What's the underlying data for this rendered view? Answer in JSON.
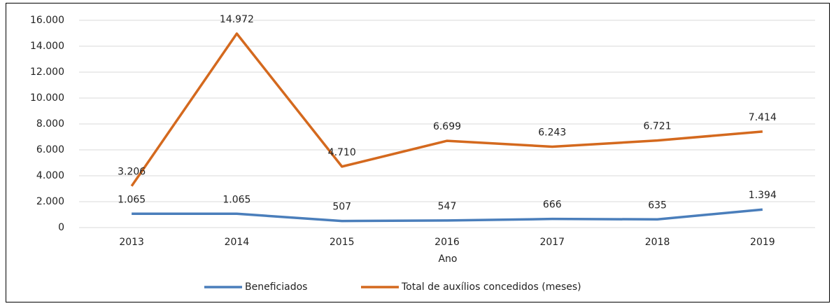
{
  "chart_data": {
    "type": "line",
    "x_label": "Ano",
    "categories": [
      "2013",
      "2014",
      "2015",
      "2016",
      "2017",
      "2018",
      "2019"
    ],
    "series": [
      {
        "name": "Beneficiados",
        "color": "#4a7ebb",
        "values": [
          1065,
          1065,
          507,
          547,
          666,
          635,
          1394
        ],
        "value_labels": [
          "1.065",
          "1.065",
          "507",
          "547",
          "666",
          "635",
          "1.394"
        ]
      },
      {
        "name": "Total de auxílios concedidos (meses)",
        "color": "#d4691e",
        "values": [
          3206,
          14972,
          4710,
          6699,
          6243,
          6721,
          7414
        ],
        "value_labels": [
          "3.206",
          "14.972",
          "4.710",
          "6.699",
          "6.243",
          "6.721",
          "7.414"
        ]
      }
    ],
    "ylim": [
      0,
      16000
    ],
    "yticks": [
      0,
      {
        "value": 2000,
        "label": "2.000"
      },
      {
        "value": 4000,
        "label": "4.000"
      },
      {
        "value": 6000,
        "label": "6.000"
      },
      {
        "value": 8000,
        "label": "8.000"
      },
      {
        "value": 10000,
        "label": "10.000"
      },
      {
        "value": 12000,
        "label": "12.000"
      },
      {
        "value": 14000,
        "label": "14.000"
      },
      {
        "value": 16000,
        "label": "16.000"
      }
    ],
    "grid": true,
    "legend": "bottom"
  }
}
